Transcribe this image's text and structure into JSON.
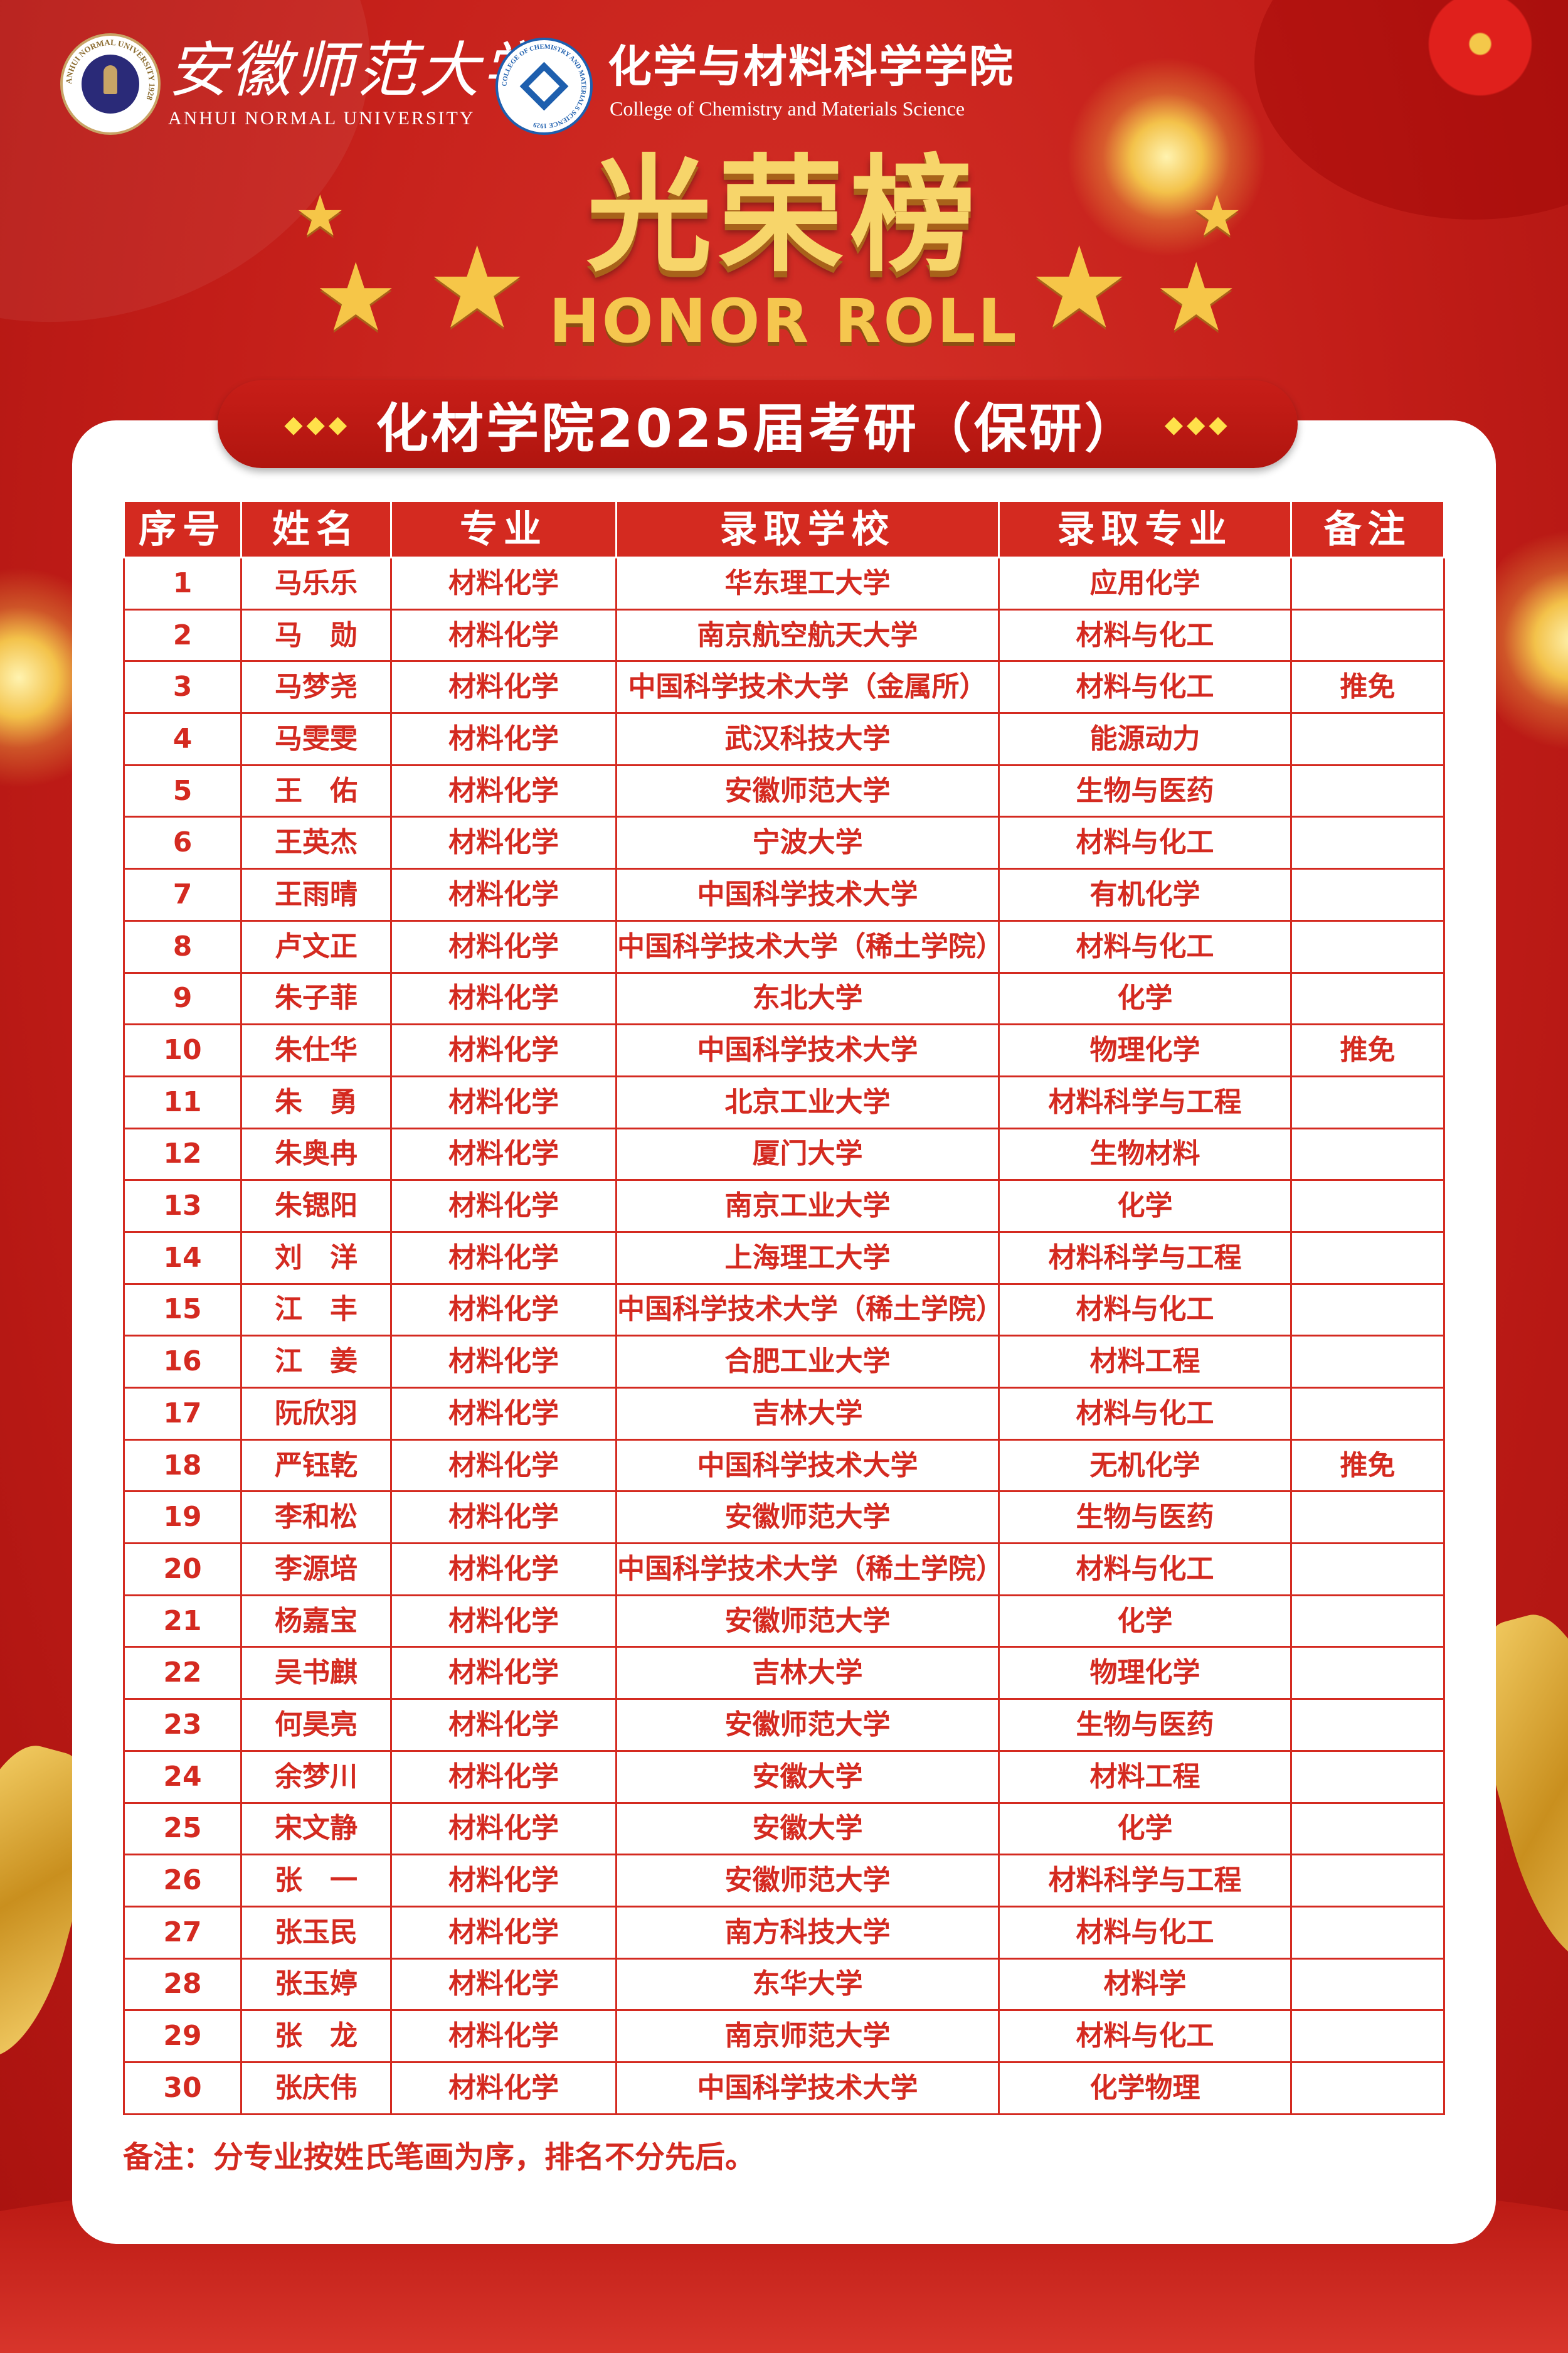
{
  "header": {
    "university_cn": "安徽师范大学",
    "university_en": "ANHUI NORMAL UNIVERSITY",
    "university_logo_text": "ANHUI NORMAL UNIVERSITY 1928",
    "college_cn": "化学与材料科学学院",
    "college_en": "College of Chemistry and Materials Science",
    "college_logo_text": "COLLEGE OF CHEMISTRY AND MATERIALS SCIENCE 1929"
  },
  "title": {
    "cn": "光荣榜",
    "en": "HONOR ROLL"
  },
  "banner": {
    "text": "化材学院2025届考研（保研）",
    "decoration": "◆◆◆"
  },
  "colors": {
    "primary_red": "#d42a20",
    "gold": "#f7d56a",
    "background_red": "#c21d18"
  },
  "table": {
    "headers": [
      "序号",
      "姓名",
      "专业",
      "录取学校",
      "录取专业",
      "备注"
    ],
    "rows": [
      [
        "1",
        "马乐乐",
        "材料化学",
        "华东理工大学",
        "应用化学",
        ""
      ],
      [
        "2",
        "马　勋",
        "材料化学",
        "南京航空航天大学",
        "材料与化工",
        ""
      ],
      [
        "3",
        "马梦尧",
        "材料化学",
        "中国科学技术大学（金属所）",
        "材料与化工",
        "推免"
      ],
      [
        "4",
        "马雯雯",
        "材料化学",
        "武汉科技大学",
        "能源动力",
        ""
      ],
      [
        "5",
        "王　佑",
        "材料化学",
        "安徽师范大学",
        "生物与医药",
        ""
      ],
      [
        "6",
        "王英杰",
        "材料化学",
        "宁波大学",
        "材料与化工",
        ""
      ],
      [
        "7",
        "王雨晴",
        "材料化学",
        "中国科学技术大学",
        "有机化学",
        ""
      ],
      [
        "8",
        "卢文正",
        "材料化学",
        "中国科学技术大学（稀土学院）",
        "材料与化工",
        ""
      ],
      [
        "9",
        "朱子菲",
        "材料化学",
        "东北大学",
        "化学",
        ""
      ],
      [
        "10",
        "朱仕华",
        "材料化学",
        "中国科学技术大学",
        "物理化学",
        "推免"
      ],
      [
        "11",
        "朱　勇",
        "材料化学",
        "北京工业大学",
        "材料科学与工程",
        ""
      ],
      [
        "12",
        "朱奥冉",
        "材料化学",
        "厦门大学",
        "生物材料",
        ""
      ],
      [
        "13",
        "朱锶阳",
        "材料化学",
        "南京工业大学",
        "化学",
        ""
      ],
      [
        "14",
        "刘　洋",
        "材料化学",
        "上海理工大学",
        "材料科学与工程",
        ""
      ],
      [
        "15",
        "江　丰",
        "材料化学",
        "中国科学技术大学（稀土学院）",
        "材料与化工",
        ""
      ],
      [
        "16",
        "江　姜",
        "材料化学",
        "合肥工业大学",
        "材料工程",
        ""
      ],
      [
        "17",
        "阮欣羽",
        "材料化学",
        "吉林大学",
        "材料与化工",
        ""
      ],
      [
        "18",
        "严钰乾",
        "材料化学",
        "中国科学技术大学",
        "无机化学",
        "推免"
      ],
      [
        "19",
        "李和松",
        "材料化学",
        "安徽师范大学",
        "生物与医药",
        ""
      ],
      [
        "20",
        "李源培",
        "材料化学",
        "中国科学技术大学（稀土学院）",
        "材料与化工",
        ""
      ],
      [
        "21",
        "杨嘉宝",
        "材料化学",
        "安徽师范大学",
        "化学",
        ""
      ],
      [
        "22",
        "吴书麒",
        "材料化学",
        "吉林大学",
        "物理化学",
        ""
      ],
      [
        "23",
        "何昊亮",
        "材料化学",
        "安徽师范大学",
        "生物与医药",
        ""
      ],
      [
        "24",
        "余梦川",
        "材料化学",
        "安徽大学",
        "材料工程",
        ""
      ],
      [
        "25",
        "宋文静",
        "材料化学",
        "安徽大学",
        "化学",
        ""
      ],
      [
        "26",
        "张　一",
        "材料化学",
        "安徽师范大学",
        "材料科学与工程",
        ""
      ],
      [
        "27",
        "张玉民",
        "材料化学",
        "南方科技大学",
        "材料与化工",
        ""
      ],
      [
        "28",
        "张玉婷",
        "材料化学",
        "东华大学",
        "材料学",
        ""
      ],
      [
        "29",
        "张　龙",
        "材料化学",
        "南京师范大学",
        "材料与化工",
        ""
      ],
      [
        "30",
        "张庆伟",
        "材料化学",
        "中国科学技术大学",
        "化学物理",
        ""
      ]
    ]
  },
  "note": "备注：分专业按姓氏笔画为序，排名不分先后。"
}
